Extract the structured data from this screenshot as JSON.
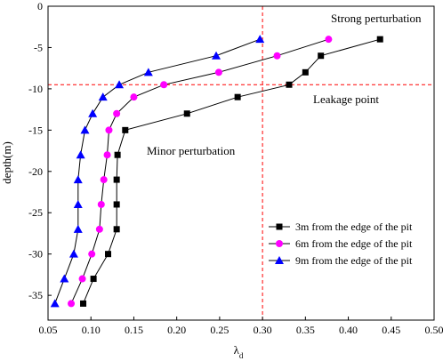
{
  "chart_data": {
    "type": "line",
    "xlabel_main": "λ",
    "xlabel_sub": "d",
    "ylabel": "depth(m)",
    "xlim": [
      0.05,
      0.5
    ],
    "ylim": [
      -38,
      0
    ],
    "xticks": [
      "0.05",
      "0.10",
      "0.15",
      "0.20",
      "0.25",
      "0.30",
      "0.35",
      "0.40",
      "0.45",
      "0.50"
    ],
    "yticks": [
      "0",
      "-5",
      "-10",
      "-15",
      "-20",
      "-25",
      "-30",
      "-35"
    ],
    "grid": false,
    "legend_position": "bottom-right",
    "reference_lines": {
      "x": 0.3,
      "y": -9.5
    },
    "annotations": {
      "strong": "Strong perturbation",
      "leakage": "Leakage point",
      "minor": "Minor perturbation"
    },
    "series": [
      {
        "name": "3m from the edge of the pit",
        "marker": "square",
        "color": "#000000",
        "points": [
          [
            0.437,
            -4
          ],
          [
            0.368,
            -6
          ],
          [
            0.35,
            -8
          ],
          [
            0.331,
            -9.5
          ],
          [
            0.271,
            -11
          ],
          [
            0.212,
            -13
          ],
          [
            0.14,
            -15
          ],
          [
            0.131,
            -18
          ],
          [
            0.13,
            -21
          ],
          [
            0.13,
            -24
          ],
          [
            0.13,
            -27
          ],
          [
            0.12,
            -30
          ],
          [
            0.103,
            -33
          ],
          [
            0.091,
            -36
          ]
        ]
      },
      {
        "name": "6m from the edge of the pit",
        "marker": "circle",
        "color": "#ff00ff",
        "points": [
          [
            0.377,
            -4
          ],
          [
            0.317,
            -6
          ],
          [
            0.249,
            -8
          ],
          [
            0.185,
            -9.5
          ],
          [
            0.15,
            -11
          ],
          [
            0.13,
            -13
          ],
          [
            0.121,
            -15
          ],
          [
            0.119,
            -18
          ],
          [
            0.115,
            -21
          ],
          [
            0.112,
            -24
          ],
          [
            0.11,
            -27
          ],
          [
            0.101,
            -30
          ],
          [
            0.09,
            -33
          ],
          [
            0.077,
            -36
          ]
        ]
      },
      {
        "name": "9m from the edge of the pit",
        "marker": "triangle",
        "color": "#0000ff",
        "points": [
          [
            0.297,
            -4
          ],
          [
            0.246,
            -6
          ],
          [
            0.167,
            -8
          ],
          [
            0.133,
            -9.5
          ],
          [
            0.114,
            -11
          ],
          [
            0.102,
            -13
          ],
          [
            0.093,
            -15
          ],
          [
            0.088,
            -18
          ],
          [
            0.085,
            -21
          ],
          [
            0.085,
            -24
          ],
          [
            0.085,
            -27
          ],
          [
            0.08,
            -30
          ],
          [
            0.069,
            -33
          ],
          [
            0.058,
            -36
          ]
        ]
      }
    ]
  }
}
